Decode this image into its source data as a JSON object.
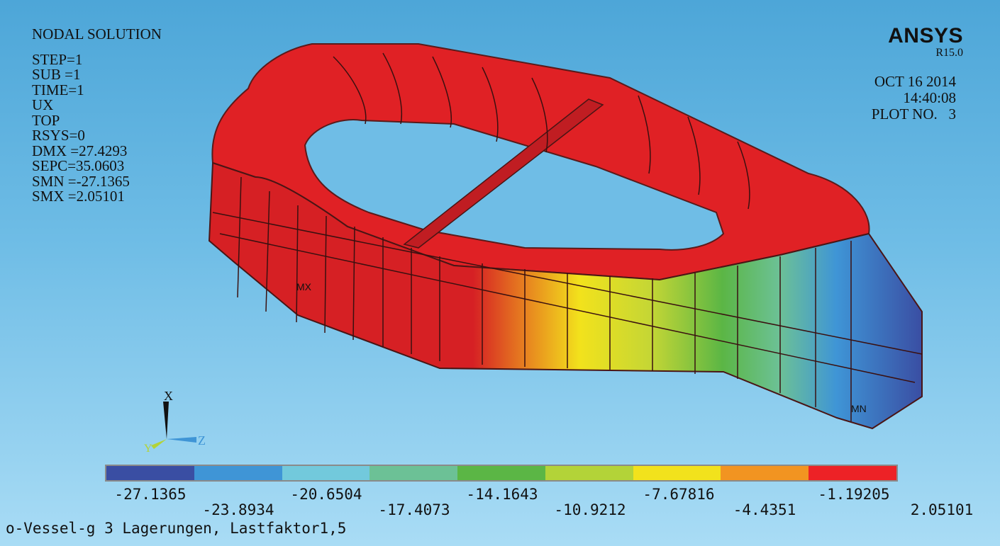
{
  "result": {
    "title": "NODAL SOLUTION",
    "lines": [
      "STEP=1",
      "SUB =1",
      "TIME=1",
      "UX",
      "TOP",
      "RSYS=0",
      "DMX =27.4293",
      "SEPC=35.0603",
      "SMN =-27.1365",
      "SMX =2.05101"
    ]
  },
  "brand": {
    "logo": "ANSYS",
    "version": "R15.0"
  },
  "stamp": {
    "date": "OCT 16 2014",
    "time": "14:40:08",
    "plot": "PLOT NO.   3"
  },
  "model_labels": {
    "max": "MX",
    "min": "MN"
  },
  "triad": {
    "x": "X",
    "y": "Y",
    "z": "Z"
  },
  "legend": {
    "colors": [
      "#3a4ea3",
      "#3f95d6",
      "#72c9dc",
      "#6cc196",
      "#5bb645",
      "#b3d338",
      "#f2e21c",
      "#f29421",
      "#ed2226"
    ],
    "labels_top": [
      "-27.1365",
      "-20.6504",
      "-14.1643",
      "-7.67816",
      "-1.19205"
    ],
    "labels_bottom": [
      "-23.8934",
      "-17.4073",
      "-10.9212",
      "-4.4351",
      "2.05101"
    ]
  },
  "caption": "o-Vessel-g 3 Lagerungen, Lastfaktor1,5"
}
